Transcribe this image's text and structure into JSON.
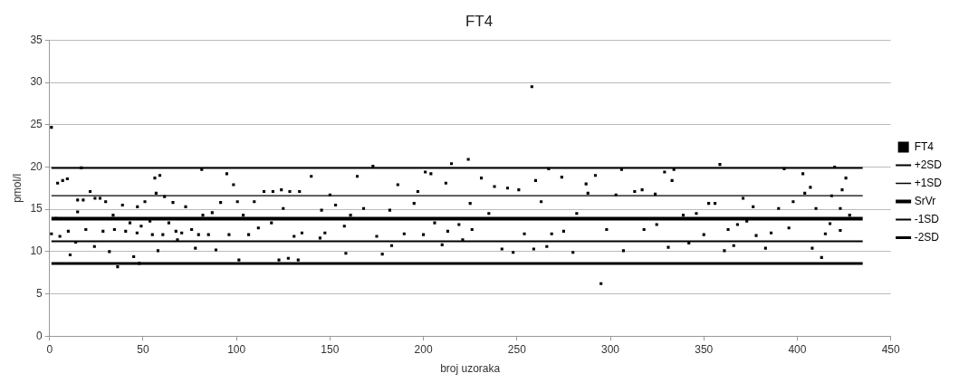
{
  "chart_data": {
    "type": "scatter",
    "title": "FT4",
    "xlabel": "broj uzoraka",
    "ylabel": "pmol/l",
    "xlim": [
      0,
      450
    ],
    "xticks": [
      0,
      50,
      100,
      150,
      200,
      250,
      300,
      350,
      400,
      450
    ],
    "ylim": [
      0,
      35
    ],
    "yticks": [
      0,
      5,
      10,
      15,
      20,
      25,
      30,
      35
    ],
    "grid": "y",
    "legend": "right",
    "marker": "square",
    "series": [
      {
        "name": "FT4",
        "color": "#000000",
        "x": [
          1,
          1,
          3.5,
          4.3,
          7,
          9.5,
          5.5,
          10,
          11,
          14,
          15,
          15,
          17,
          18,
          19.4,
          21.7,
          24.3,
          24,
          27,
          28.6,
          30,
          32,
          34,
          34.7,
          36.4,
          39,
          40.7,
          43,
          45,
          47,
          46.8,
          49,
          48,
          51,
          53.7,
          55,
          56.3,
          59,
          57,
          58,
          61.5,
          60.6,
          63.8,
          66,
          67.6,
          68.4,
          70.7,
          72.8,
          76,
          78,
          79.7,
          81.4,
          82,
          85,
          87,
          89,
          91.5,
          94.8,
          96,
          98.4,
          100.5,
          101.3,
          103.6,
          106.5,
          109.5,
          111.7,
          114.7,
          118.7,
          119.5,
          122.7,
          124,
          125,
          127.7,
          128.5,
          130.8,
          133,
          133.7,
          135,
          140,
          144.7,
          145.5,
          147.3,
          150,
          153,
          157.7,
          158.5,
          161,
          164.6,
          168,
          173,
          175,
          178,
          182,
          183,
          186.3,
          189.7,
          195,
          197,
          200,
          201,
          204,
          206,
          210,
          212,
          213,
          215,
          219,
          221,
          224,
          225,
          226,
          231,
          235,
          238,
          242,
          245,
          248,
          251,
          254,
          258,
          259,
          260,
          263,
          266,
          267,
          268.6,
          274,
          275,
          280,
          282,
          287,
          288,
          292,
          295,
          298,
          303,
          306,
          307,
          313,
          317,
          318,
          324,
          324.8,
          331,
          329,
          334,
          333,
          339,
          342,
          346,
          350,
          352.6,
          356,
          358.6,
          361,
          363,
          366,
          368,
          371,
          373,
          376.4,
          378,
          383,
          386,
          390,
          393,
          395.5,
          397.8,
          403,
          404,
          407,
          408,
          410,
          413,
          415,
          417.5,
          418.4,
          420,
          423,
          423,
          424,
          426,
          428
        ],
        "values": [
          24.7,
          12.1,
          13.9,
          18.1,
          18.4,
          18.6,
          11.8,
          12.4,
          9.6,
          11.1,
          14.7,
          16.1,
          19.9,
          16.1,
          12.6,
          17.1,
          16.3,
          10.6,
          16.3,
          12.4,
          15.9,
          10,
          14.3,
          12.6,
          8.2,
          15.5,
          12.4,
          13.4,
          9.4,
          15.3,
          12.2,
          13,
          8.6,
          15.9,
          13.6,
          12,
          18.7,
          19,
          16.9,
          10.1,
          16.5,
          12,
          13.4,
          15.8,
          12.4,
          11.4,
          12.2,
          15.3,
          12.6,
          10.4,
          12,
          19.7,
          14.3,
          12,
          14.6,
          10.2,
          15.8,
          19.2,
          12,
          17.9,
          15.9,
          9,
          14.3,
          12,
          15.9,
          12.8,
          17.1,
          13.4,
          17.1,
          9,
          17.3,
          15.1,
          9.2,
          17.1,
          11.8,
          9,
          17.1,
          12.2,
          18.9,
          11.6,
          14.9,
          12.2,
          16.7,
          15.5,
          13,
          9.8,
          14.3,
          18.9,
          15.1,
          20.1,
          11.8,
          9.7,
          14.9,
          10.7,
          17.9,
          12.1,
          15.7,
          17.1,
          12,
          19.4,
          19.2,
          13.4,
          10.8,
          18.1,
          12.4,
          20.4,
          13.2,
          11.4,
          20.9,
          15.7,
          12.6,
          18.7,
          14.5,
          17.7,
          10.3,
          17.5,
          9.9,
          17.3,
          12.1,
          29.5,
          10.3,
          18.4,
          15.9,
          10.6,
          19.8,
          12.1,
          18.8,
          12.4,
          9.9,
          14.5,
          18,
          16.9,
          19,
          6.2,
          12.6,
          16.7,
          19.7,
          10.1,
          17.1,
          17.3,
          12.6,
          16.8,
          13.2,
          10.5,
          19.4,
          19.7,
          18.4,
          14.3,
          11,
          14.5,
          12,
          15.7,
          15.7,
          20.3,
          10.1,
          12.6,
          10.7,
          13.2,
          16.3,
          13.6,
          15.3,
          11.9,
          10.4,
          12.2,
          15.1,
          19.8,
          12.8,
          15.9,
          19.2,
          16.9,
          17.6,
          10.4,
          15.1,
          9.3,
          12.1,
          13.3,
          16.6,
          20,
          15.1,
          12.5,
          17.3,
          18.7,
          14.3
        ]
      },
      {
        "name": "+2SD",
        "type": "line",
        "color": "#000000",
        "marker": "none",
        "x": [
          1,
          435
        ],
        "values": [
          19.9,
          19.9
        ]
      },
      {
        "name": "+1SD",
        "type": "line",
        "color": "#000000",
        "marker": "none",
        "x": [
          1,
          435
        ],
        "values": [
          16.6,
          16.6
        ]
      },
      {
        "name": "SrVr",
        "type": "line",
        "color": "#000000",
        "marker": "none",
        "x": [
          1,
          435
        ],
        "values": [
          13.9,
          13.9
        ]
      },
      {
        "name": "-1SD",
        "type": "line",
        "color": "#000000",
        "marker": "none",
        "x": [
          1,
          435
        ],
        "values": [
          11.2,
          11.2
        ]
      },
      {
        "name": "-2SD",
        "type": "line",
        "color": "#000000",
        "marker": "none",
        "x": [
          1,
          435
        ],
        "values": [
          8.6,
          8.6
        ]
      }
    ]
  }
}
